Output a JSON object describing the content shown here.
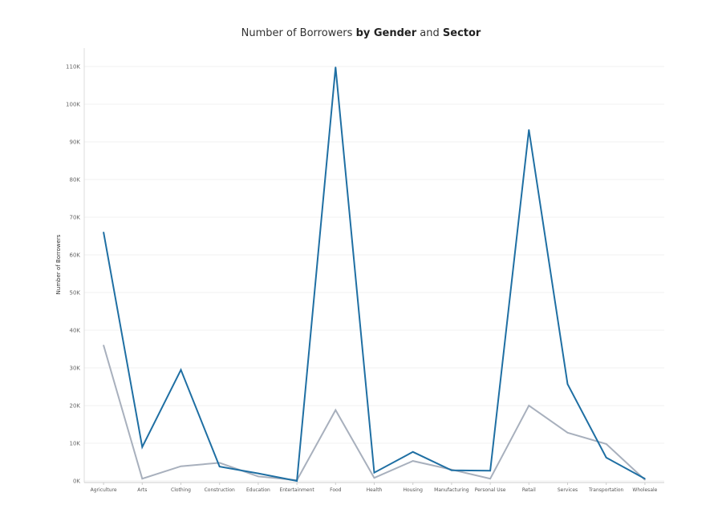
{
  "chart_data": {
    "type": "line",
    "title_parts": [
      {
        "text": "Number of Borrowers ",
        "bold": false
      },
      {
        "text": "by Gender",
        "bold": true
      },
      {
        "text": "  and ",
        "bold": false
      },
      {
        "text": "Sector",
        "bold": true
      }
    ],
    "ylabel": "Number of Borrowers",
    "xlabel": "",
    "ylim": [
      0,
      110000
    ],
    "yticks": [
      {
        "value": 0,
        "label": "0K"
      },
      {
        "value": 10000,
        "label": "10K"
      },
      {
        "value": 20000,
        "label": "20K"
      },
      {
        "value": 30000,
        "label": "30K"
      },
      {
        "value": 40000,
        "label": "40K"
      },
      {
        "value": 50000,
        "label": "50K"
      },
      {
        "value": 60000,
        "label": "60K"
      },
      {
        "value": 70000,
        "label": "70K"
      },
      {
        "value": 80000,
        "label": "80K"
      },
      {
        "value": 90000,
        "label": "90K"
      },
      {
        "value": 100000,
        "label": "100K"
      },
      {
        "value": 110000,
        "label": "110K"
      }
    ],
    "categories": [
      "Agriculture",
      "Arts",
      "Clothing",
      "Construction",
      "Education",
      "Entertainment",
      "Food",
      "Health",
      "Housing",
      "Manufacturing",
      "Personal Use",
      "Retail",
      "Services",
      "Transportation",
      "Wholesale"
    ],
    "grid": true,
    "series": [
      {
        "color": "#1f6fa3",
        "values": [
          66000,
          9000,
          29500,
          3800,
          2000,
          0,
          109800,
          2200,
          7700,
          2800,
          2700,
          93200,
          25700,
          6200,
          600
        ]
      },
      {
        "color": "#a8b0bd",
        "values": [
          36000,
          600,
          3900,
          4800,
          1200,
          200,
          18800,
          800,
          5300,
          3000,
          600,
          20000,
          12800,
          9800,
          300
        ]
      }
    ]
  }
}
